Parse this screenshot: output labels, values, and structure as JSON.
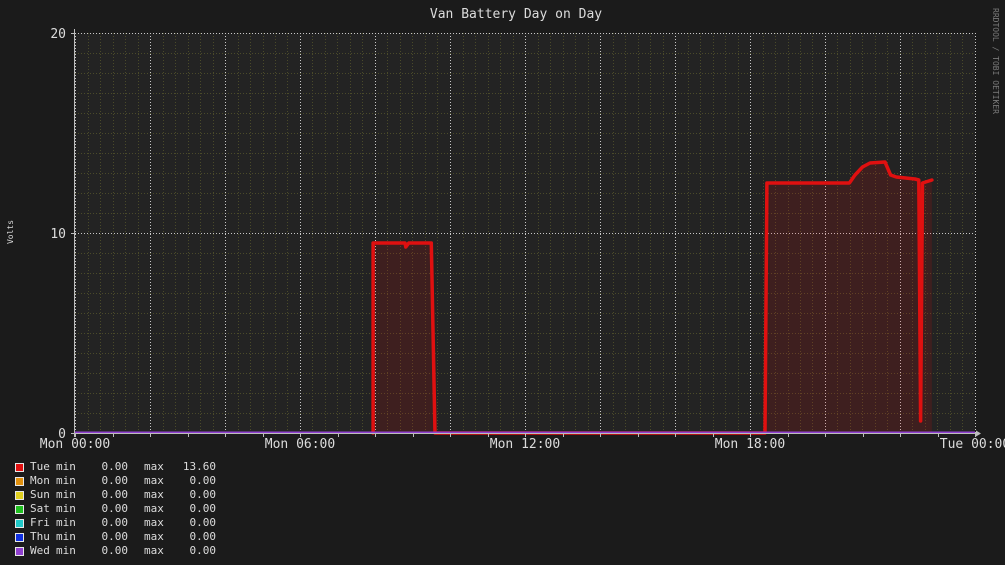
{
  "chart_data": {
    "type": "area",
    "title": "Van Battery Day on Day",
    "ylabel": "Volts",
    "watermark": "RRDTOOL / TOBI OETIKER",
    "xlim": [
      0,
      24
    ],
    "ylim": [
      0,
      20
    ],
    "grid": true,
    "y_ticks": [
      0,
      10,
      20
    ],
    "x_ticks": [
      {
        "value": 0,
        "label": "Mon 00:00"
      },
      {
        "value": 6,
        "label": "Mon 06:00"
      },
      {
        "value": 12,
        "label": "Mon 12:00"
      },
      {
        "value": 18,
        "label": "Mon 18:00"
      },
      {
        "value": 24,
        "label": "Tue 00:00"
      }
    ],
    "legend_position": "bottom-left",
    "series": [
      {
        "name": "Tue",
        "color": "#e01010",
        "min": "0.00",
        "max": "13.60",
        "points": [
          [
            7.95,
            0
          ],
          [
            7.95,
            9.5
          ],
          [
            8.5,
            9.5
          ],
          [
            8.8,
            9.5
          ],
          [
            8.82,
            9.3
          ],
          [
            8.9,
            9.5
          ],
          [
            9.5,
            9.5
          ],
          [
            9.6,
            0
          ],
          [
            18.4,
            0
          ],
          [
            18.45,
            12.5
          ],
          [
            19.5,
            12.5
          ],
          [
            20.65,
            12.5
          ],
          [
            20.8,
            12.9
          ],
          [
            21.0,
            13.3
          ],
          [
            21.2,
            13.5
          ],
          [
            21.6,
            13.55
          ],
          [
            21.75,
            12.9
          ],
          [
            21.9,
            12.8
          ],
          [
            22.4,
            12.7
          ],
          [
            22.5,
            12.65
          ],
          [
            22.55,
            0.6
          ],
          [
            22.6,
            12.5
          ],
          [
            22.85,
            12.65
          ]
        ]
      },
      {
        "name": "Mon",
        "color": "#e0900e",
        "min": "0.00",
        "max": "0.00"
      },
      {
        "name": "Sun",
        "color": "#e0d020",
        "min": "0.00",
        "max": "0.00"
      },
      {
        "name": "Sat",
        "color": "#20c020",
        "min": "0.00",
        "max": "0.00"
      },
      {
        "name": "Fri",
        "color": "#20c8c8",
        "min": "0.00",
        "max": "0.00"
      },
      {
        "name": "Thu",
        "color": "#1030e0",
        "min": "0.00",
        "max": "0.00"
      },
      {
        "name": "Wed",
        "color": "#9040d0",
        "min": "0.00",
        "max": "0.00"
      }
    ],
    "legend_labels": {
      "min": "min",
      "max": "max"
    }
  }
}
